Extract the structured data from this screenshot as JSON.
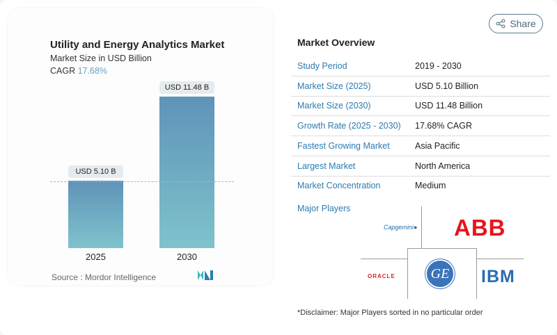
{
  "chart_card": {
    "title": "Utility and Energy Analytics Market",
    "subtitle": "Market Size in USD Billion",
    "cagr_label": "CAGR",
    "cagr_value": "17.68%",
    "source": "Source :  Mordor Intelligence"
  },
  "chart_data": {
    "type": "bar",
    "categories": [
      "2025",
      "2030"
    ],
    "values": [
      5.1,
      11.48
    ],
    "data_labels": [
      "USD 5.10 B",
      "USD 11.48 B"
    ],
    "title": "Utility and Energy Analytics Market",
    "ylabel": "Market Size in USD Billion",
    "colors": [
      "#5f93b8",
      "#7fc3cc"
    ]
  },
  "share": {
    "label": "Share",
    "icon": "share-icon"
  },
  "overview": {
    "title": "Market Overview",
    "rows": [
      {
        "key": "Study Period",
        "value": "2019 - 2030"
      },
      {
        "key": "Market Size (2025)",
        "value": "USD 5.10 Billion"
      },
      {
        "key": "Market Size (2030)",
        "value": "USD 11.48 Billion"
      },
      {
        "key": "Growth Rate (2025 - 2030)",
        "value": "17.68% CAGR"
      },
      {
        "key": "Fastest Growing Market",
        "value": "Asia Pacific"
      },
      {
        "key": "Largest Market",
        "value": "North America"
      },
      {
        "key": "Market Concentration",
        "value": "Medium"
      }
    ]
  },
  "players": {
    "title": "Major Players",
    "logos": [
      "Capgemini",
      "ABB",
      "ORACLE",
      "GE",
      "IBM"
    ]
  },
  "disclaimer": "*Disclaimer: Major Players sorted in no particular order"
}
